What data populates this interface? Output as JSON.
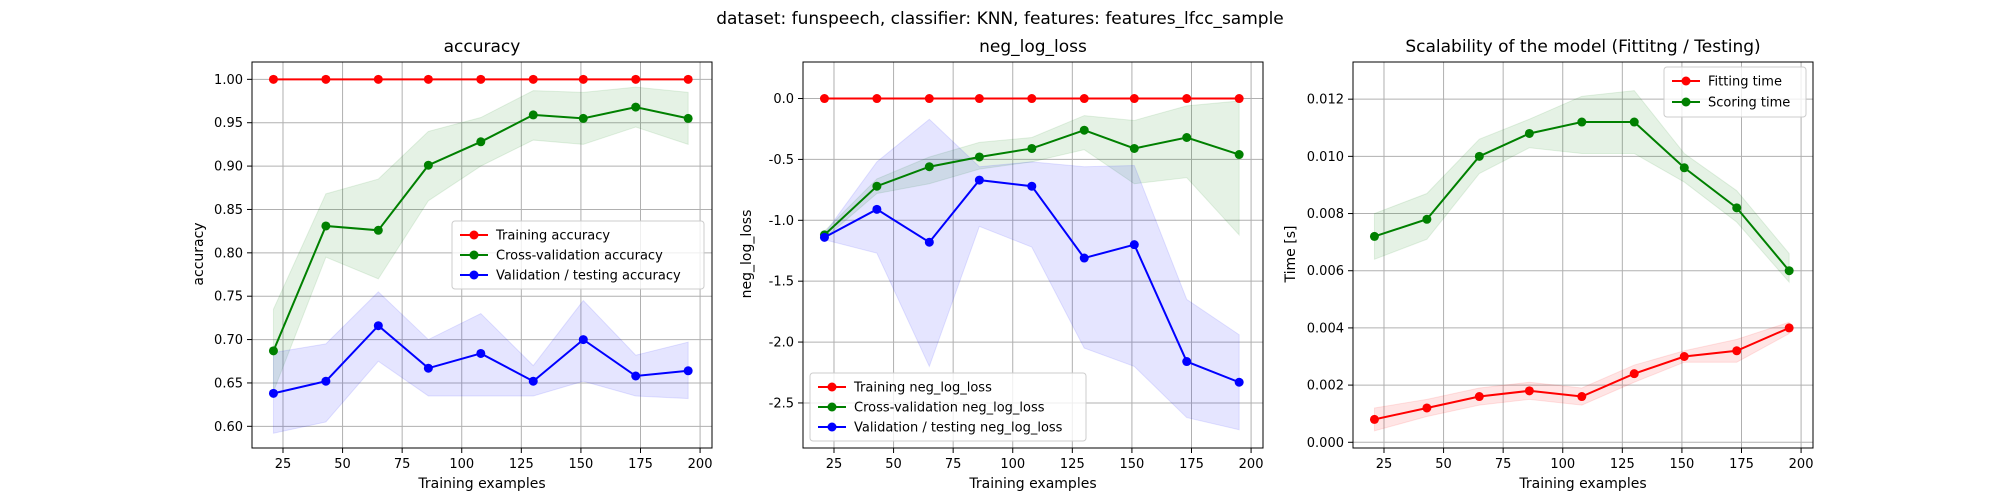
{
  "suptitle": "dataset: funspeech, classifier: KNN, features: features_lfcc_sample",
  "chart_data": [
    {
      "type": "line",
      "title": "accuracy",
      "xlabel": "Training examples",
      "ylabel": "accuracy",
      "xlim": [
        12,
        205
      ],
      "ylim": [
        0.575,
        1.02
      ],
      "xticks": [
        25,
        50,
        75,
        100,
        125,
        150,
        175,
        200
      ],
      "yticks": [
        0.6,
        0.65,
        0.7,
        0.75,
        0.8,
        0.85,
        0.9,
        0.95,
        1.0
      ],
      "ytick_decimals": 2,
      "grid": true,
      "legend": "center-right",
      "x": [
        21,
        43,
        65,
        86,
        108,
        130,
        151,
        173,
        195
      ],
      "series": [
        {
          "name": "Training accuracy",
          "color": "#ff0000",
          "values": [
            1.0,
            1.0,
            1.0,
            1.0,
            1.0,
            1.0,
            1.0,
            1.0,
            1.0
          ],
          "band_lower": [
            1.0,
            1.0,
            1.0,
            1.0,
            1.0,
            1.0,
            1.0,
            1.0,
            1.0
          ],
          "band_upper": [
            1.0,
            1.0,
            1.0,
            1.0,
            1.0,
            1.0,
            1.0,
            1.0,
            1.0
          ]
        },
        {
          "name": "Cross-validation accuracy",
          "color": "#008000",
          "values": [
            0.687,
            0.831,
            0.826,
            0.901,
            0.928,
            0.959,
            0.955,
            0.968,
            0.955
          ],
          "band_lower": [
            0.64,
            0.795,
            0.77,
            0.86,
            0.9,
            0.93,
            0.925,
            0.945,
            0.925
          ],
          "band_upper": [
            0.735,
            0.868,
            0.885,
            0.94,
            0.956,
            0.987,
            0.985,
            0.991,
            0.985
          ]
        },
        {
          "name": "Validation / testing accuracy",
          "color": "#0000ff",
          "values": [
            0.638,
            0.652,
            0.716,
            0.667,
            0.684,
            0.652,
            0.7,
            0.658,
            0.664
          ],
          "band_lower": [
            0.592,
            0.605,
            0.675,
            0.635,
            0.635,
            0.635,
            0.652,
            0.635,
            0.632
          ],
          "band_upper": [
            0.685,
            0.695,
            0.755,
            0.7,
            0.73,
            0.67,
            0.745,
            0.682,
            0.697
          ]
        }
      ]
    },
    {
      "type": "line",
      "title": "neg_log_loss",
      "xlabel": "Training examples",
      "ylabel": "neg_log_loss",
      "xlim": [
        12,
        205
      ],
      "ylim": [
        -2.87,
        0.3
      ],
      "xticks": [
        25,
        50,
        75,
        100,
        125,
        150,
        175,
        200
      ],
      "yticks": [
        -2.5,
        -2.0,
        -1.5,
        -1.0,
        -0.5,
        0.0
      ],
      "ytick_decimals": 1,
      "grid": true,
      "legend": "lower-left",
      "x": [
        21,
        43,
        65,
        86,
        108,
        130,
        151,
        173,
        195
      ],
      "series": [
        {
          "name": "Training neg_log_loss",
          "color": "#ff0000",
          "values": [
            0,
            0,
            0,
            0,
            0,
            0,
            0,
            0,
            0
          ],
          "band_lower": [
            0,
            0,
            0,
            0,
            0,
            0,
            0,
            0,
            0
          ],
          "band_upper": [
            0,
            0,
            0,
            0,
            0,
            0,
            0,
            0,
            0
          ]
        },
        {
          "name": "Cross-validation neg_log_loss",
          "color": "#008000",
          "values": [
            -1.12,
            -0.72,
            -0.56,
            -0.48,
            -0.41,
            -0.26,
            -0.41,
            -0.32,
            -0.46
          ],
          "band_lower": [
            -1.15,
            -0.78,
            -0.7,
            -0.58,
            -0.52,
            -0.42,
            -0.7,
            -0.65,
            -1.12
          ],
          "band_upper": [
            -1.09,
            -0.66,
            -0.48,
            -0.36,
            -0.32,
            -0.14,
            -0.18,
            -0.06,
            -0.02
          ]
        },
        {
          "name": "Validation / testing neg_log_loss",
          "color": "#0000ff",
          "values": [
            -1.14,
            -0.91,
            -1.18,
            -0.67,
            -0.72,
            -1.31,
            -1.2,
            -2.16,
            -2.33
          ],
          "band_lower": [
            -1.16,
            -1.27,
            -2.2,
            -1.05,
            -1.22,
            -2.05,
            -2.2,
            -2.62,
            -2.72
          ],
          "band_upper": [
            -1.11,
            -0.52,
            -0.17,
            -0.56,
            -0.52,
            -0.56,
            -0.55,
            -1.65,
            -1.94
          ]
        }
      ]
    },
    {
      "type": "line",
      "title": "Scalability of the model (Fittitng / Testing)",
      "xlabel": "Training examples",
      "ylabel": "Time [s]",
      "xlim": [
        12,
        205
      ],
      "ylim": [
        -0.0002,
        0.0133
      ],
      "xticks": [
        25,
        50,
        75,
        100,
        125,
        150,
        175,
        200
      ],
      "yticks": [
        0.0,
        0.002,
        0.004,
        0.006,
        0.008,
        0.01,
        0.012
      ],
      "ytick_decimals": 3,
      "grid": true,
      "legend": "top-right",
      "x": [
        21,
        43,
        65,
        86,
        108,
        130,
        151,
        173,
        195
      ],
      "series": [
        {
          "name": "Fitting time",
          "color": "#ff0000",
          "values": [
            0.0008,
            0.0012,
            0.0016,
            0.0018,
            0.0016,
            0.0024,
            0.003,
            0.0032,
            0.004
          ],
          "band_lower": [
            0.0004,
            0.0009,
            0.0013,
            0.0015,
            0.0013,
            0.0021,
            0.0028,
            0.0028,
            0.0038
          ],
          "band_upper": [
            0.0012,
            0.0015,
            0.0019,
            0.0021,
            0.0019,
            0.0027,
            0.0032,
            0.0036,
            0.0042
          ]
        },
        {
          "name": "Scoring time",
          "color": "#008000",
          "values": [
            0.0072,
            0.0078,
            0.01,
            0.0108,
            0.0112,
            0.0112,
            0.0096,
            0.0082,
            0.006
          ],
          "band_lower": [
            0.0064,
            0.0071,
            0.0094,
            0.0103,
            0.0101,
            0.0101,
            0.0091,
            0.0077,
            0.0056
          ],
          "band_upper": [
            0.008,
            0.0087,
            0.0106,
            0.0113,
            0.0121,
            0.0123,
            0.0101,
            0.0088,
            0.0066
          ]
        }
      ]
    }
  ]
}
